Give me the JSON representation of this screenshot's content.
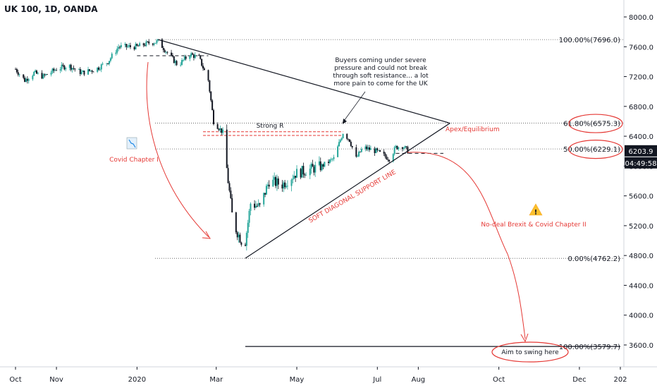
{
  "header": {
    "title": "UK 100, 1D, OANDA"
  },
  "colors": {
    "up": "#26a69a",
    "down": "#131722",
    "annotation": "#e53935",
    "line": "#131722",
    "badge": "#131722"
  },
  "chart_data": {
    "type": "candlestick",
    "symbol": "UK 100",
    "interval": "1D",
    "broker": "OANDA",
    "ylim": [
      3200,
      8400
    ],
    "y_ticks": [
      3600,
      4000,
      4400,
      4800,
      5200,
      5600,
      6000,
      6400,
      6800,
      7200,
      7600,
      8000
    ],
    "y_tick_labels": [
      "3600.0",
      "4000.0",
      "4400.0",
      "4800.0",
      "5200.0",
      "5600.0",
      "6000.0",
      "6400.0",
      "6800.0",
      "7200.0",
      "7600.0",
      "8000.0"
    ],
    "x_range": [
      "2019-10-01",
      "2021-01-01"
    ],
    "x_ticks": [
      {
        "date": "2019-10-01",
        "label": "Oct"
      },
      {
        "date": "2019-11-01",
        "label": "Nov"
      },
      {
        "date": "2020-01-01",
        "label": "2020"
      },
      {
        "date": "2020-03-01",
        "label": "Mar"
      },
      {
        "date": "2020-05-01",
        "label": "May"
      },
      {
        "date": "2020-07-01",
        "label": "Jul"
      },
      {
        "date": "2020-08-01",
        "label": "Aug"
      },
      {
        "date": "2020-10-01",
        "label": "Oct"
      },
      {
        "date": "2020-12-01",
        "label": "Dec"
      },
      {
        "date": "2021-01-01",
        "label": "202"
      }
    ],
    "price_path": [
      {
        "date": "2019-10-01",
        "price": 7300
      },
      {
        "date": "2019-10-08",
        "price": 7150
      },
      {
        "date": "2019-10-15",
        "price": 7250
      },
      {
        "date": "2019-10-22",
        "price": 7200
      },
      {
        "date": "2019-11-01",
        "price": 7300
      },
      {
        "date": "2019-11-10",
        "price": 7350
      },
      {
        "date": "2019-11-20",
        "price": 7250
      },
      {
        "date": "2019-12-01",
        "price": 7300
      },
      {
        "date": "2019-12-10",
        "price": 7400
      },
      {
        "date": "2019-12-18",
        "price": 7600
      },
      {
        "date": "2020-01-01",
        "price": 7600
      },
      {
        "date": "2020-01-10",
        "price": 7650
      },
      {
        "date": "2020-01-17",
        "price": 7670
      },
      {
        "date": "2020-01-25",
        "price": 7500
      },
      {
        "date": "2020-02-01",
        "price": 7350
      },
      {
        "date": "2020-02-10",
        "price": 7500
      },
      {
        "date": "2020-02-17",
        "price": 7450
      },
      {
        "date": "2020-02-24",
        "price": 7150
      },
      {
        "date": "2020-02-28",
        "price": 6600
      },
      {
        "date": "2020-03-06",
        "price": 6450
      },
      {
        "date": "2020-03-10",
        "price": 5800
      },
      {
        "date": "2020-03-13",
        "price": 5350
      },
      {
        "date": "2020-03-16",
        "price": 5150
      },
      {
        "date": "2020-03-20",
        "price": 5000
      },
      {
        "date": "2020-03-23",
        "price": 4990
      },
      {
        "date": "2020-03-27",
        "price": 5500
      },
      {
        "date": "2020-04-03",
        "price": 5450
      },
      {
        "date": "2020-04-10",
        "price": 5800
      },
      {
        "date": "2020-04-20",
        "price": 5750
      },
      {
        "date": "2020-04-30",
        "price": 5900
      },
      {
        "date": "2020-05-10",
        "price": 5950
      },
      {
        "date": "2020-05-20",
        "price": 6000
      },
      {
        "date": "2020-05-29",
        "price": 6100
      },
      {
        "date": "2020-06-05",
        "price": 6450
      },
      {
        "date": "2020-06-10",
        "price": 6350
      },
      {
        "date": "2020-06-15",
        "price": 6100
      },
      {
        "date": "2020-06-20",
        "price": 6250
      },
      {
        "date": "2020-06-30",
        "price": 6200
      },
      {
        "date": "2020-07-05",
        "price": 6150
      },
      {
        "date": "2020-07-10",
        "price": 6100
      },
      {
        "date": "2020-07-15",
        "price": 6250
      },
      {
        "date": "2020-07-20",
        "price": 6270
      },
      {
        "date": "2020-07-24",
        "price": 6203.9
      }
    ],
    "price_path_note": "approximate trace of the daily candles",
    "current_price": {
      "value": 6203.9,
      "label": "6203.9",
      "countdown": "04:49:58"
    },
    "fib_levels": [
      {
        "pct": "100.00%",
        "value": 7696.0,
        "label": "100.00%(7696.0)",
        "circled": false
      },
      {
        "pct": "61.80%",
        "value": 6575.3,
        "label": "61.80%(6575.3)",
        "circled": true
      },
      {
        "pct": "50.00%",
        "value": 6229.1,
        "label": "50.00%(6229.1)",
        "circled": true
      },
      {
        "pct": "0.00%",
        "value": 4762.2,
        "label": "0.00%(4762.2)",
        "circled": false
      },
      {
        "pct": "100.00%",
        "value": 3579.7,
        "label": "100.00%(3579.7)",
        "circled": false
      }
    ],
    "trendlines": [
      {
        "name": "upper",
        "from": {
          "date": "2020-01-17",
          "price": 7696.0
        },
        "to": {
          "date": "2020-08-25",
          "price": 6575.3
        }
      },
      {
        "name": "support",
        "from": {
          "date": "2020-03-23",
          "price": 4762.2
        },
        "to": {
          "date": "2020-08-25",
          "price": 6575.3
        }
      },
      {
        "name": "target",
        "from": {
          "date": "2020-03-23",
          "price": 3579.7
        },
        "to": {
          "date": "2021-01-01",
          "price": 3579.7
        }
      }
    ],
    "dashed_levels": [
      {
        "from": "2020-01-01",
        "to": "2020-02-24",
        "price": 7480
      },
      {
        "from": "2020-07-15",
        "to": "2020-08-20",
        "price": 6170
      }
    ],
    "resistance_zone": {
      "from": "2020-02-20",
      "to": "2020-06-05",
      "top": 6460,
      "bottom": 6410
    },
    "annotations": {
      "strong_r": "Strong R",
      "buyers_note": [
        "Buyers coming under severe",
        "pressure and could not break",
        "through soft resistance... a lot",
        "more pain to come for the UK"
      ],
      "apex": "Apex/Equilibrium",
      "support_line": "SOFT DIAGONAL SUPPORT LINE",
      "covid_1": "Covid Chapter I",
      "nodeal": "No-deal Brexit & Covid Chapter II",
      "aim": "Aim to swing here"
    }
  }
}
